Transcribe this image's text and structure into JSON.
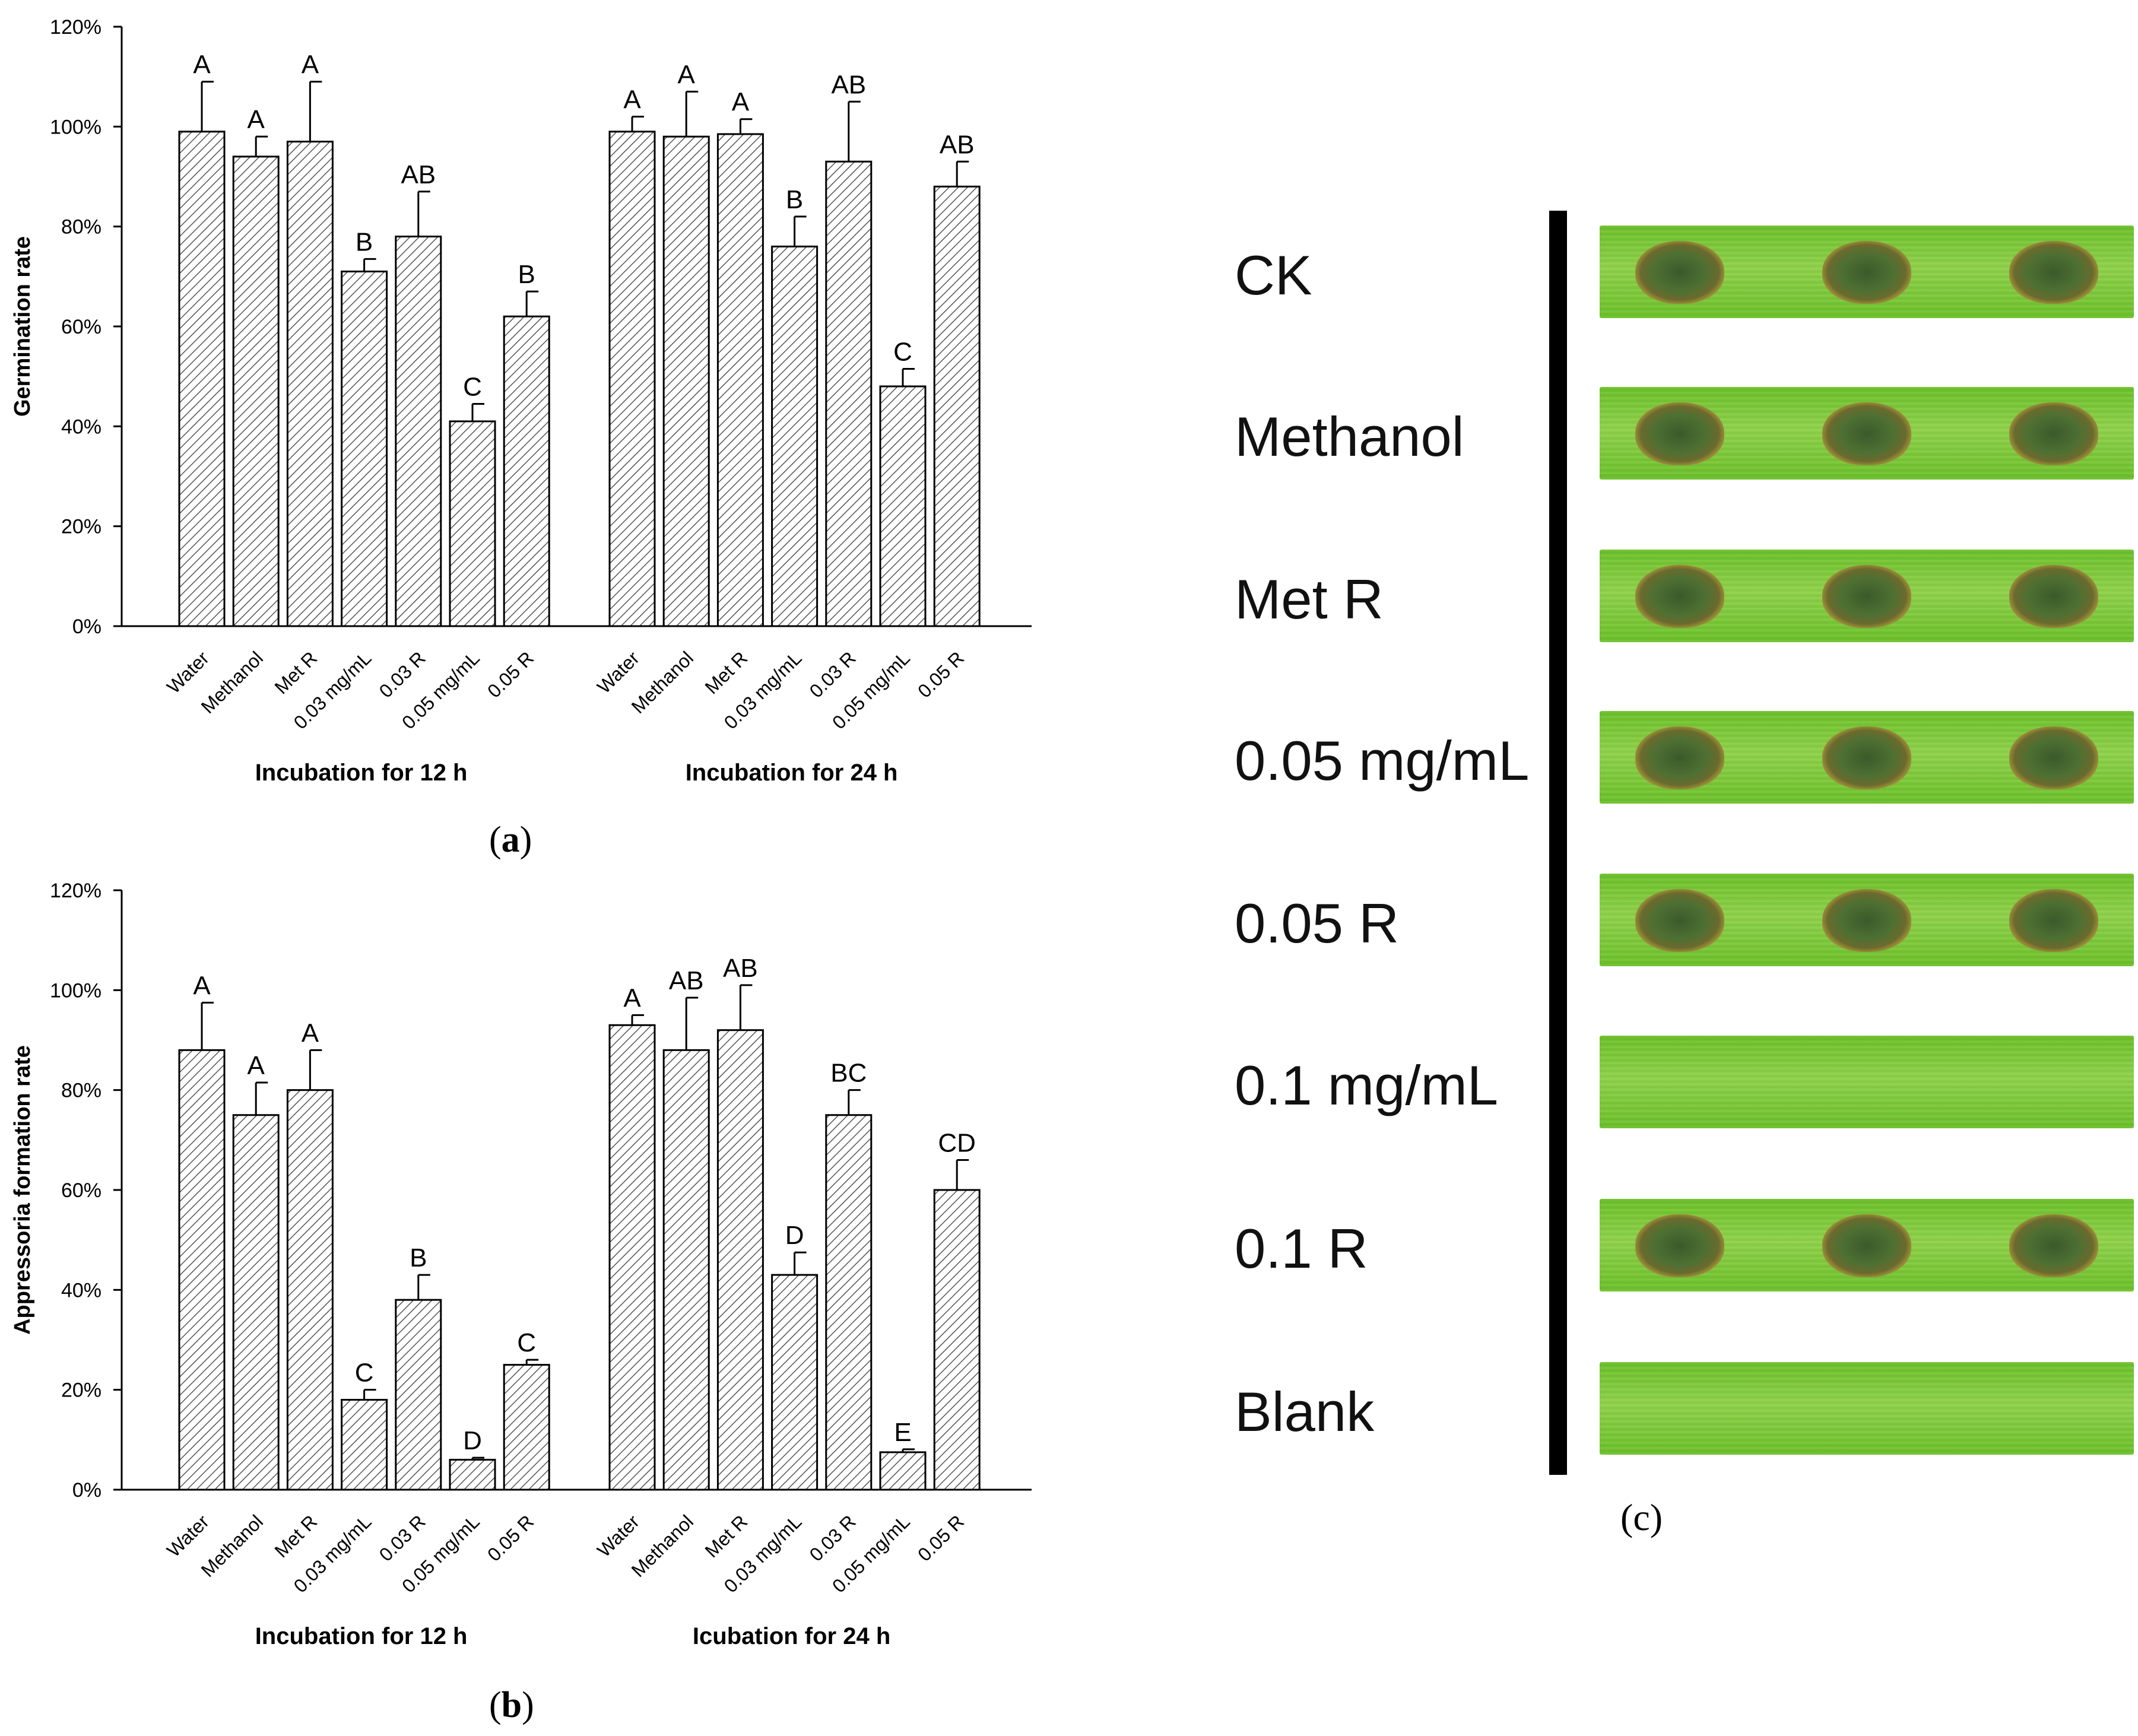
{
  "charts": [
    {
      "id": "a",
      "panel_label": "a",
      "ylabel": "Germination rate",
      "yticks": [
        "0%",
        "20%",
        "40%",
        "60%",
        "80%",
        "100%",
        "120%"
      ],
      "groups": [
        {
          "title": "Incubation for 12 h"
        },
        {
          "title": "Incubation for 24 h"
        }
      ]
    },
    {
      "id": "b",
      "panel_label": "b",
      "ylabel": "Appressoria formation rate",
      "yticks": [
        "0%",
        "20%",
        "40%",
        "60%",
        "80%",
        "100%",
        "120%"
      ],
      "groups": [
        {
          "title": "Incubation for 12 h"
        },
        {
          "title": "Icubation for 24 h"
        }
      ]
    }
  ],
  "chart_data": [
    {
      "type": "bar",
      "title": "",
      "ylabel": "Germination rate",
      "ylim": [
        0,
        120
      ],
      "y_unit": "%",
      "categories": [
        "Water",
        "Methanol",
        "Met R",
        "0.03 mg/mL",
        "0.03 R",
        "0.05 mg/mL",
        "0.05 R"
      ],
      "groups": [
        {
          "name": "Incubation for 12 h",
          "values": [
            99,
            94,
            97,
            71,
            78,
            41,
            62
          ],
          "errors": [
            10,
            4,
            12,
            2.5,
            9,
            3.5,
            5
          ],
          "letters": [
            "A",
            "A",
            "A",
            "B",
            "AB",
            "C",
            "B"
          ]
        },
        {
          "name": "Incubation for 24 h",
          "values": [
            99,
            98,
            98.5,
            76,
            93,
            48,
            88
          ],
          "errors": [
            3,
            9,
            3,
            6,
            12,
            3.5,
            5
          ],
          "letters": [
            "A",
            "A",
            "A",
            "B",
            "AB",
            "C",
            "AB"
          ]
        }
      ]
    },
    {
      "type": "bar",
      "title": "",
      "ylabel": "Appressoria formation rate",
      "ylim": [
        0,
        120
      ],
      "y_unit": "%",
      "categories": [
        "Water",
        "Methanol",
        "Met R",
        "0.03 mg/mL",
        "0.03 R",
        "0.05 mg/mL",
        "0.05 R"
      ],
      "groups": [
        {
          "name": "Incubation for 12 h",
          "values": [
            88,
            75,
            80,
            18,
            38,
            6,
            25
          ],
          "errors": [
            9.5,
            6.5,
            8,
            2,
            5,
            0.4,
            1
          ],
          "letters": [
            "A",
            "A",
            "A",
            "C",
            "B",
            "D",
            "C"
          ]
        },
        {
          "name": "Icubation for 24 h",
          "values": [
            93,
            88,
            92,
            43,
            75,
            7.5,
            60
          ],
          "errors": [
            2,
            10.5,
            9,
            4.5,
            5,
            0.6,
            6
          ],
          "letters": [
            "A",
            "AB",
            "AB",
            "D",
            "BC",
            "E",
            "CD"
          ]
        }
      ]
    }
  ],
  "panel_c": {
    "label": "c",
    "rows": [
      {
        "label": "CK",
        "lesions": 3
      },
      {
        "label": "Methanol",
        "lesions": 3
      },
      {
        "label": "Met R",
        "lesions": 3
      },
      {
        "label": "0.05 mg/mL",
        "lesions": 3
      },
      {
        "label": "0.05 R",
        "lesions": 3
      },
      {
        "label": "0.1 mg/mL",
        "lesions": 0
      },
      {
        "label": "0.1 R",
        "lesions": 3
      },
      {
        "label": "Blank",
        "lesions": 0
      }
    ]
  },
  "colors": {
    "bar_stroke": "#000000",
    "hatch": "#555555",
    "leaf_green": "#6cc02a",
    "leaf_light": "#8fd24a",
    "lesion_dark": "#3b5a2a",
    "lesion_halo": "#b9a640"
  }
}
